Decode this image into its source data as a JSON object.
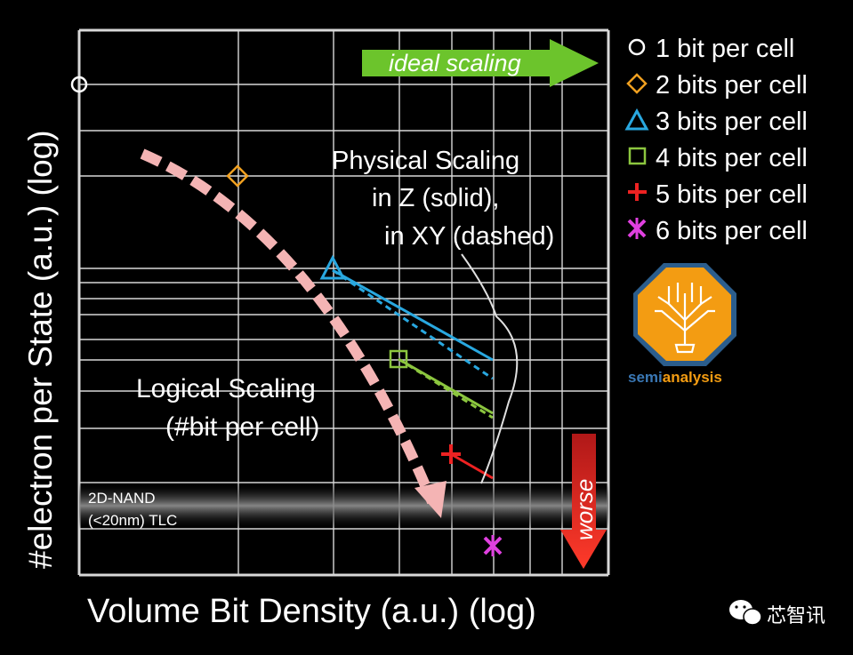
{
  "chart_data": {
    "type": "scatter",
    "title": "",
    "xlabel": "Volume Bit Density (a.u.) (log)",
    "ylabel": "#electron per State (a.u.) (log)",
    "x_scale": "log",
    "y_scale": "log",
    "grid": true,
    "legend_position": "top-right",
    "series": [
      {
        "name": "1 bit per cell",
        "marker": "circle",
        "color": "#ffffff",
        "x": 1.0,
        "y": 1000
      },
      {
        "name": "2 bits per cell",
        "marker": "diamond",
        "color": "#f0a020",
        "x": 2.0,
        "y": 500
      },
      {
        "name": "3 bits per cell",
        "marker": "triangle",
        "color": "#29a8e0",
        "x": 3.0,
        "y": 333
      },
      {
        "name": "4 bits per cell",
        "marker": "square",
        "color": "#8cc63f",
        "x": 4.0,
        "y": 250
      },
      {
        "name": "5 bits per cell",
        "marker": "plus",
        "color": "#ee2222",
        "x": 5.0,
        "y": 200
      },
      {
        "name": "6 bits per cell",
        "marker": "x",
        "color": "#e040e0",
        "x": 6.0,
        "y": 167
      }
    ],
    "scaling_lines": [
      {
        "series": "3 bits per cell",
        "color": "#29a8e0",
        "solid_to": [
          6.0,
          240
        ],
        "dashed_to": [
          6.0,
          225
        ]
      },
      {
        "series": "4 bits per cell",
        "color": "#8cc63f",
        "solid_to": [
          6.0,
          200
        ],
        "dashed_to": [
          6.0,
          199
        ]
      },
      {
        "series": "5 bits per cell",
        "color": "#ee2222",
        "solid_to": [
          6.0,
          185
        ]
      }
    ],
    "logical_scaling_arrow": {
      "color": "#f4b4b4",
      "from": [
        1.4,
        650
      ],
      "to": [
        5.0,
        155
      ]
    },
    "reference_band": {
      "label_line1": "2D-NAND",
      "label_line2": "(<20nm) TLC",
      "y": 175
    },
    "annotations": {
      "ideal_scaling": "ideal scaling",
      "worse": "worse",
      "physical_line1": "Physical Scaling",
      "physical_line2": "in Z (solid),",
      "physical_line3": "in XY (dashed)",
      "logical_line1": "Logical Scaling",
      "logical_line2": "(#bit per cell)"
    }
  },
  "logo": {
    "text_part1": "semi",
    "text_part2": "analysis"
  },
  "watermark": {
    "text": "芯智讯"
  },
  "colors": {
    "background": "#000000",
    "grid": "#d8d8d8",
    "ideal_arrow": "#6cc42c",
    "worse_arrow": "#e8302a",
    "logo_orange": "#f39c12",
    "logo_blue": "#2b5d8c"
  }
}
